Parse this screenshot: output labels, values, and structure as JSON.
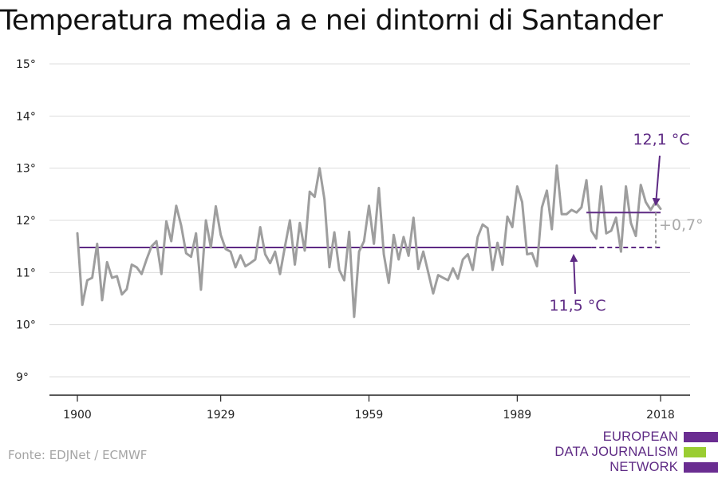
{
  "title": "Temperatura media a e nei dintorni di Santander",
  "source": "Fonte: EDJNet / ECMWF",
  "logo": {
    "lines": [
      "EUROPEAN",
      "DATA JOURNALISM",
      "NETWORK"
    ],
    "colors": [
      "#6a2d91",
      "#9acd32",
      "#6a2d91"
    ]
  },
  "colors": {
    "series": "#9e9e9e",
    "baseline": "#5e2a84",
    "difference": "#9e9e9e",
    "grid": "#dddddd",
    "axis": "#222222"
  },
  "chart_data": {
    "type": "line",
    "title": "Temperatura media a e nei dintorni di Santander",
    "xlabel": "",
    "ylabel": "",
    "xlim": [
      1900,
      2018
    ],
    "ylim": [
      9,
      15
    ],
    "x_ticks": [
      "1900",
      "1929",
      "1959",
      "1989",
      "2018"
    ],
    "y_ticks": [
      "9°",
      "10°",
      "11°",
      "12°",
      "13°",
      "14°",
      "15°"
    ],
    "grid": true,
    "series": [
      {
        "x": [
          1900,
          1901,
          1902,
          1903,
          1904,
          1905,
          1906,
          1907,
          1908,
          1909,
          1910,
          1911,
          1912,
          1913,
          1914,
          1915,
          1916,
          1917,
          1918,
          1919,
          1920,
          1921,
          1922,
          1923,
          1924,
          1925,
          1926,
          1927,
          1928,
          1929,
          1930,
          1931,
          1932,
          1933,
          1934,
          1935,
          1936,
          1937,
          1938,
          1939,
          1940,
          1941,
          1942,
          1943,
          1944,
          1945,
          1946,
          1947,
          1948,
          1949,
          1950,
          1951,
          1952,
          1953,
          1954,
          1955,
          1956,
          1957,
          1958,
          1959,
          1960,
          1961,
          1962,
          1963,
          1964,
          1965,
          1966,
          1967,
          1968,
          1969,
          1970,
          1971,
          1972,
          1973,
          1974,
          1975,
          1976,
          1977,
          1978,
          1979,
          1980,
          1981,
          1982,
          1983,
          1984,
          1985,
          1986,
          1987,
          1988,
          1989,
          1990,
          1991,
          1992,
          1993,
          1994,
          1995,
          1996,
          1997,
          1998,
          1999,
          2000,
          2001,
          2002,
          2003,
          2004,
          2005,
          2006,
          2007,
          2008,
          2009,
          2010,
          2011,
          2012,
          2013,
          2014,
          2015,
          2016,
          2017,
          2018
        ],
        "values": [
          11.75,
          10.38,
          10.85,
          10.9,
          11.55,
          10.47,
          11.2,
          10.9,
          10.93,
          10.58,
          10.68,
          11.15,
          11.1,
          10.97,
          11.25,
          11.5,
          11.6,
          10.97,
          11.98,
          11.6,
          12.28,
          11.9,
          11.37,
          11.3,
          11.75,
          10.67,
          12.0,
          11.48,
          12.27,
          11.72,
          11.45,
          11.4,
          11.1,
          11.33,
          11.12,
          11.18,
          11.25,
          11.87,
          11.35,
          11.18,
          11.4,
          10.97,
          11.5,
          12.0,
          11.15,
          11.95,
          11.42,
          12.55,
          12.45,
          13.0,
          12.4,
          11.1,
          11.77,
          11.05,
          10.85,
          11.78,
          10.15,
          11.4,
          11.6,
          12.28,
          11.55,
          12.62,
          11.35,
          10.8,
          11.72,
          11.25,
          11.68,
          11.32,
          12.05,
          11.07,
          11.4,
          11.0,
          10.6,
          10.95,
          10.9,
          10.85,
          11.08,
          10.88,
          11.25,
          11.35,
          11.05,
          11.68,
          11.92,
          11.85,
          11.05,
          11.57,
          11.15,
          12.07,
          11.87,
          12.65,
          12.35,
          11.35,
          11.37,
          11.12,
          12.25,
          12.57,
          11.83,
          13.05,
          12.12,
          12.12,
          12.2,
          12.15,
          12.25,
          12.77,
          11.8,
          11.65,
          12.65,
          11.75,
          11.8,
          12.05,
          11.4,
          12.65,
          11.95,
          11.7,
          12.68,
          12.35,
          12.2,
          12.35,
          12.22
        ]
      }
    ],
    "baseline": {
      "value": 11.48,
      "x_start": 1900,
      "x_solid_end": 2004,
      "x_end": 2018
    },
    "recent_mean": {
      "value": 12.15,
      "x_start": 2003,
      "x_end": 2018
    },
    "annotations": {
      "recent": "12,1 °C",
      "baseline": "11,5 °C",
      "difference": "+0,7°"
    }
  }
}
